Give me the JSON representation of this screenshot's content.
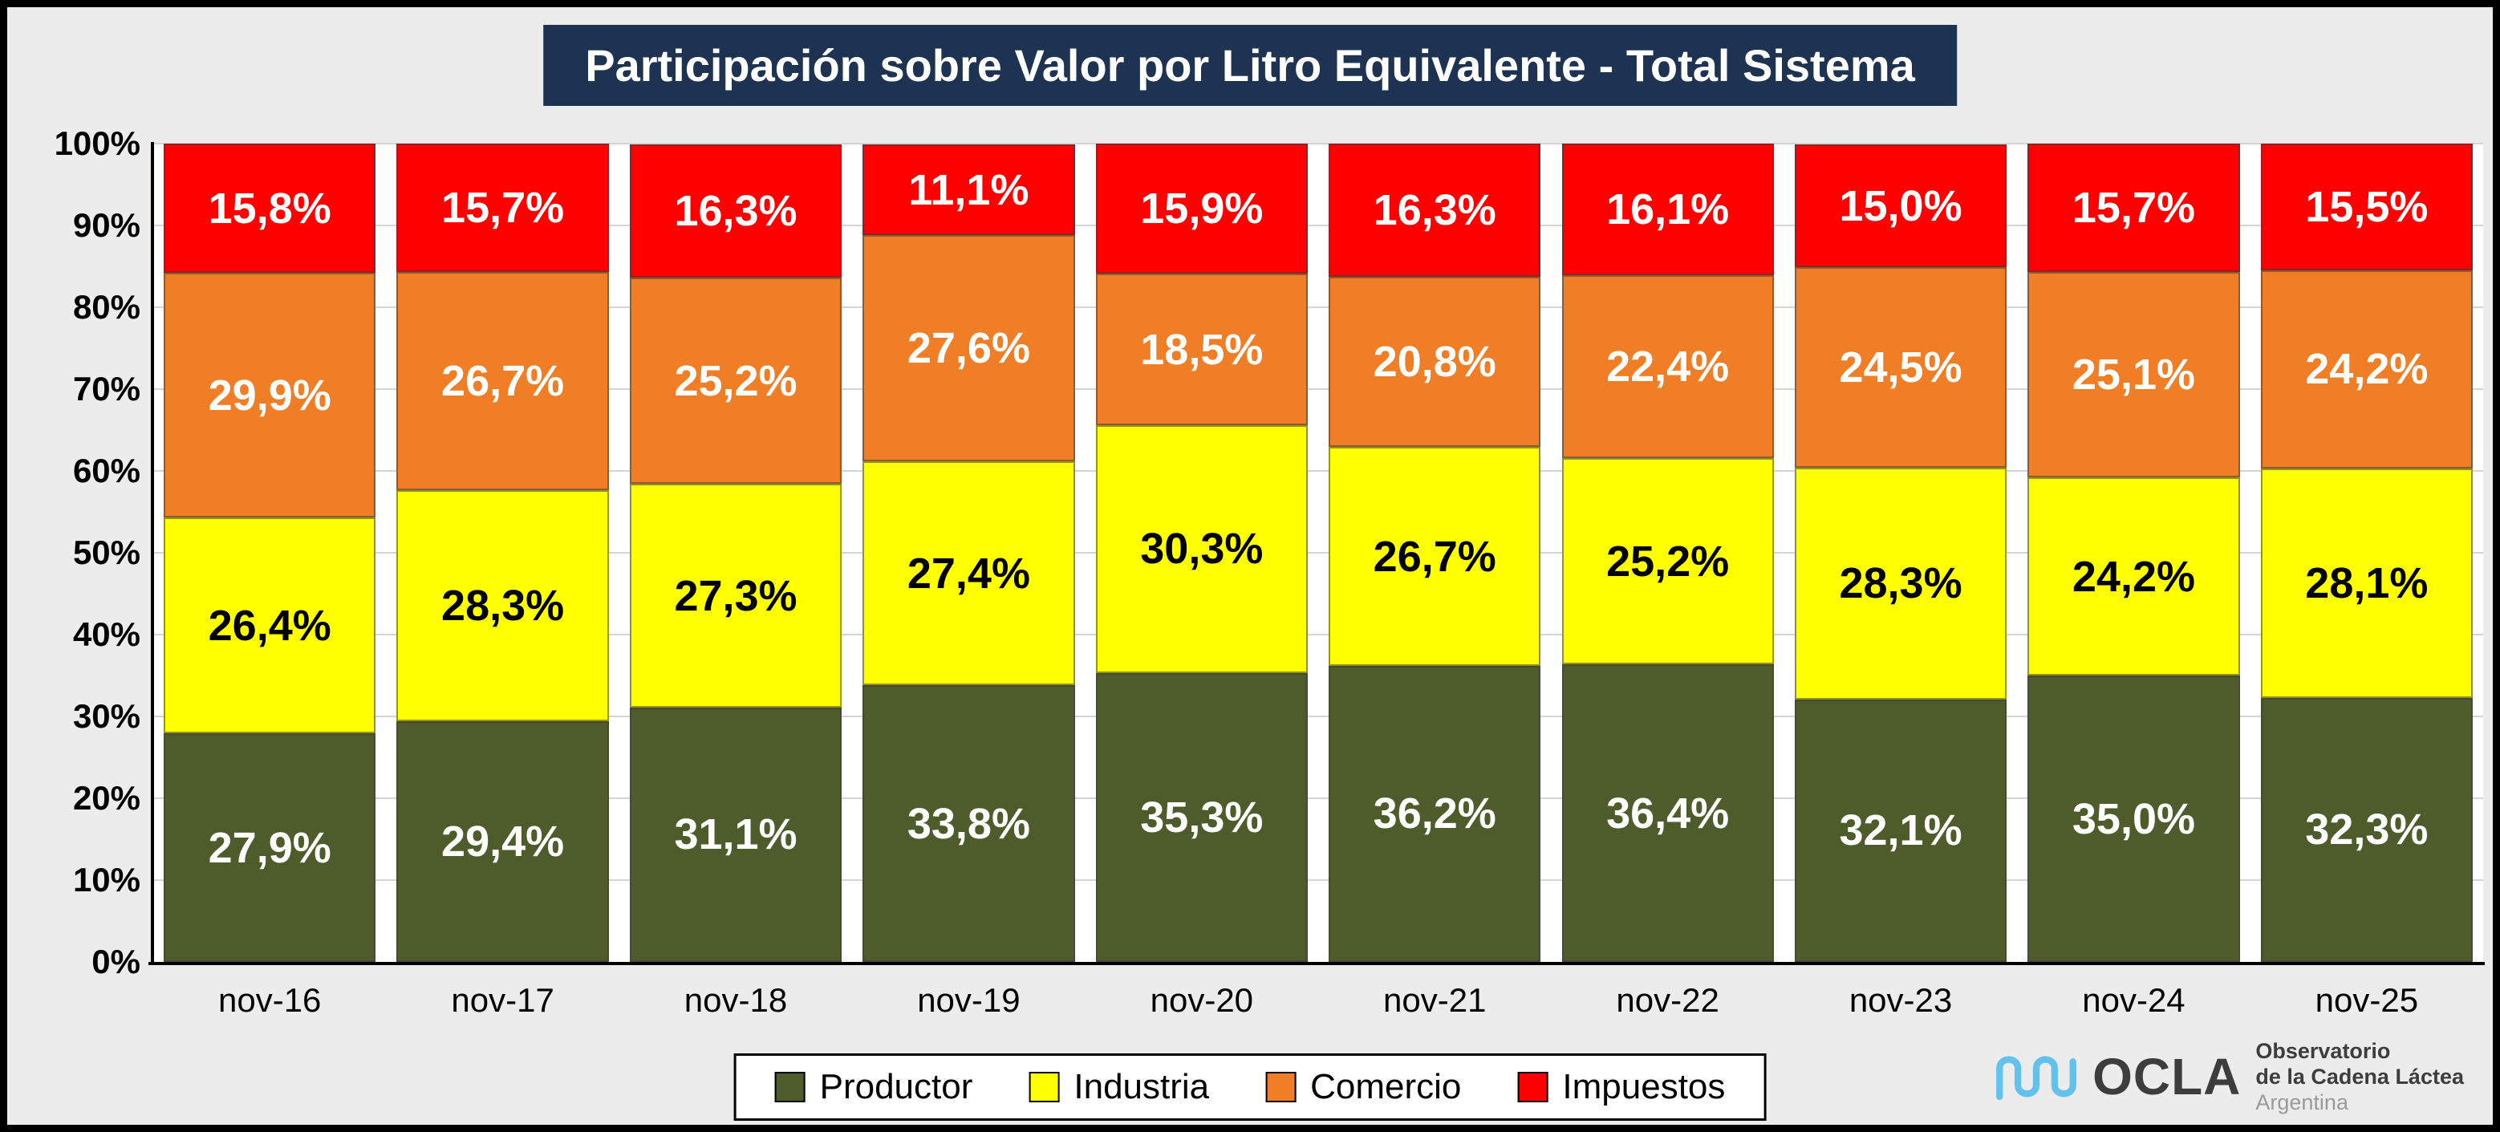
{
  "chart_data": {
    "type": "bar",
    "stacked": true,
    "title": "Participación sobre Valor por Litro Equivalente - Total Sistema",
    "categories": [
      "nov-16",
      "nov-17",
      "nov-18",
      "nov-19",
      "nov-20",
      "nov-21",
      "nov-22",
      "nov-23",
      "nov-24",
      "nov-25"
    ],
    "series": [
      {
        "name": "Productor",
        "color": "#4E5C2B",
        "label_color": "#FFFFFF",
        "values": [
          27.9,
          29.4,
          31.1,
          33.8,
          35.3,
          36.2,
          36.4,
          32.1,
          35.0,
          32.3
        ]
      },
      {
        "name": "Industria",
        "color": "#FFFF00",
        "label_color": "#000000",
        "values": [
          26.4,
          28.3,
          27.3,
          27.4,
          30.3,
          26.7,
          25.2,
          28.3,
          24.2,
          28.1
        ]
      },
      {
        "name": "Comercio",
        "color": "#F07E26",
        "label_color": "#FFFFFF",
        "values": [
          29.9,
          26.7,
          25.2,
          27.6,
          18.5,
          20.8,
          22.4,
          24.5,
          25.1,
          24.2
        ]
      },
      {
        "name": "Impuestos",
        "color": "#FE0000",
        "label_color": "#FFFFFF",
        "values": [
          15.8,
          15.7,
          16.3,
          11.1,
          15.9,
          16.3,
          16.1,
          15.0,
          15.7,
          15.5
        ]
      }
    ],
    "xlabel": "",
    "ylabel": "",
    "ylim": [
      0,
      100
    ],
    "y_ticks": [
      "0%",
      "10%",
      "20%",
      "30%",
      "40%",
      "50%",
      "60%",
      "70%",
      "80%",
      "90%",
      "100%"
    ],
    "grid": true,
    "legend_position": "bottom",
    "value_label_format": "decimal-comma-percent",
    "colors": {
      "title_background": "#1E3252",
      "title_text": "#FFFFFF",
      "chart_background": "#ECECEC",
      "plot_background": "#FFFFFF",
      "frame_border": "#000000"
    }
  },
  "logo": {
    "brand": "OCLA",
    "line1": "Observatorio",
    "line2": "de la Cadena Láctea",
    "line3": "Argentina",
    "wave_color": "#62C2EC"
  }
}
